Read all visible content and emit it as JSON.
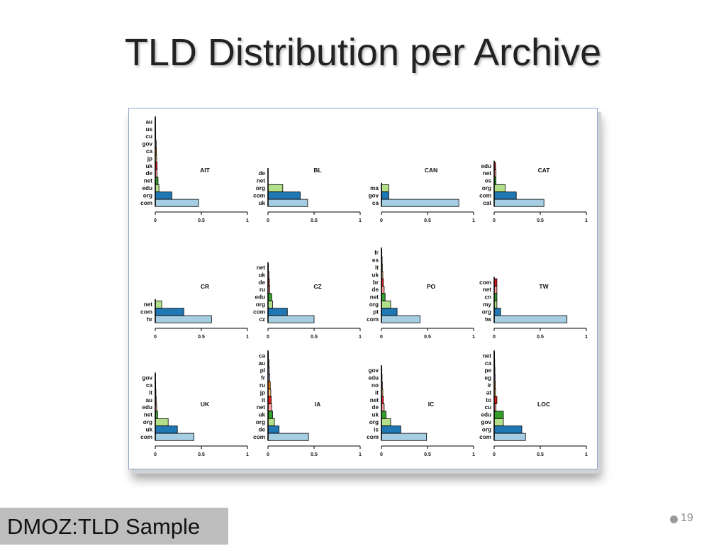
{
  "slide": {
    "title": "TLD Distribution per Archive",
    "footer_label": "DMOZ:TLD Sample",
    "page_number": "19"
  },
  "colors": {
    "com": "#a6cee3",
    "org": "#1f78b4",
    "edu": "#b2df8a",
    "net": "#33a02c",
    "de": "#fb9a99",
    "uk": "#e31a1c",
    "jp": "#fdbf6f",
    "ca": "#ff7f00",
    "gov": "#cab2d6",
    "bar_outline": "#000000"
  },
  "chart_data": [
    {
      "type": "bar",
      "orientation": "horizontal",
      "title": "AIT",
      "categories": [
        "com",
        "org",
        "edu",
        "net",
        "de",
        "uk",
        "jp",
        "ca",
        "gov",
        "cu",
        "us",
        "au"
      ],
      "values": [
        0.47,
        0.18,
        0.04,
        0.03,
        0.02,
        0.02,
        0.015,
        0.012,
        0.01,
        0.005,
        0.004,
        0.003
      ],
      "fills": [
        "com",
        "org",
        "edu",
        "net",
        "de",
        "uk",
        "jp",
        "ca",
        "gov",
        "com",
        "org",
        "edu"
      ],
      "xlim": [
        0,
        1
      ],
      "xticks": [
        "0",
        "0.5",
        "1"
      ]
    },
    {
      "type": "bar",
      "orientation": "horizontal",
      "title": "BL",
      "categories": [
        "uk",
        "com",
        "org",
        "net",
        "de"
      ],
      "values": [
        0.43,
        0.35,
        0.16,
        0.0,
        0.0
      ],
      "fills": [
        "com",
        "org",
        "edu",
        "net",
        "de"
      ],
      "xlim": [
        0,
        1
      ],
      "xticks": [
        "0",
        "0.5",
        "1"
      ]
    },
    {
      "type": "bar",
      "orientation": "horizontal",
      "title": "CAN",
      "categories": [
        "ca",
        "gov",
        "ma"
      ],
      "values": [
        0.84,
        0.08,
        0.08
      ],
      "fills": [
        "com",
        "org",
        "edu"
      ],
      "xlim": [
        0,
        1
      ],
      "xticks": [
        "0",
        "0.5",
        "1"
      ]
    },
    {
      "type": "bar",
      "orientation": "horizontal",
      "title": "CAT",
      "categories": [
        "cat",
        "com",
        "org",
        "es",
        "net",
        "edu"
      ],
      "values": [
        0.54,
        0.24,
        0.12,
        0.02,
        0.02,
        0.015
      ],
      "fills": [
        "com",
        "org",
        "edu",
        "net",
        "de",
        "uk"
      ],
      "xlim": [
        0,
        1
      ],
      "xticks": [
        "0",
        "0.5",
        "1"
      ]
    },
    {
      "type": "bar",
      "orientation": "horizontal",
      "title": "CR",
      "categories": [
        "hr",
        "com",
        "net"
      ],
      "values": [
        0.61,
        0.31,
        0.07
      ],
      "fills": [
        "com",
        "org",
        "edu"
      ],
      "xlim": [
        0,
        1
      ],
      "xticks": [
        "0",
        "0.5",
        "1"
      ]
    },
    {
      "type": "bar",
      "orientation": "horizontal",
      "title": "CZ",
      "categories": [
        "cz",
        "com",
        "org",
        "edu",
        "ru",
        "de",
        "uk",
        "net"
      ],
      "values": [
        0.5,
        0.21,
        0.05,
        0.04,
        0.02,
        0.015,
        0.01,
        0.005
      ],
      "fills": [
        "com",
        "org",
        "edu",
        "net",
        "de",
        "uk",
        "jp",
        "ca"
      ],
      "xlim": [
        0,
        1
      ],
      "xticks": [
        "0",
        "0.5",
        "1"
      ]
    },
    {
      "type": "bar",
      "orientation": "horizontal",
      "title": "PO",
      "categories": [
        "com",
        "pt",
        "org",
        "net",
        "de",
        "br",
        "uk",
        "it",
        "es",
        "fr"
      ],
      "values": [
        0.42,
        0.17,
        0.1,
        0.04,
        0.03,
        0.02,
        0.015,
        0.01,
        0.008,
        0.005
      ],
      "fills": [
        "com",
        "org",
        "edu",
        "net",
        "de",
        "uk",
        "jp",
        "ca",
        "gov",
        "com"
      ],
      "xlim": [
        0,
        1
      ],
      "xticks": [
        "0",
        "0.5",
        "1"
      ]
    },
    {
      "type": "bar",
      "orientation": "horizontal",
      "title": "TW",
      "categories": [
        "tw",
        "org",
        "my",
        "cn",
        "net",
        "com"
      ],
      "values": [
        0.79,
        0.07,
        0.03,
        0.03,
        0.03,
        0.03
      ],
      "fills": [
        "com",
        "org",
        "edu",
        "net",
        "de",
        "uk"
      ],
      "xlim": [
        0,
        1
      ],
      "xticks": [
        "0",
        "0.5",
        "1"
      ]
    },
    {
      "type": "bar",
      "orientation": "horizontal",
      "title": "UK",
      "categories": [
        "com",
        "uk",
        "org",
        "net",
        "edu",
        "au",
        "it",
        "ca",
        "gov"
      ],
      "values": [
        0.42,
        0.24,
        0.14,
        0.025,
        0.015,
        0.01,
        0.007,
        0.005,
        0.003
      ],
      "fills": [
        "com",
        "org",
        "edu",
        "net",
        "de",
        "uk",
        "jp",
        "ca",
        "gov"
      ],
      "xlim": [
        0,
        1
      ],
      "xticks": [
        "0",
        "0.5",
        "1"
      ]
    },
    {
      "type": "bar",
      "orientation": "horizontal",
      "title": "IA",
      "categories": [
        "com",
        "de",
        "org",
        "uk",
        "net",
        "it",
        "jp",
        "ru",
        "fr",
        "pl",
        "au",
        "ca"
      ],
      "values": [
        0.44,
        0.12,
        0.07,
        0.05,
        0.04,
        0.035,
        0.03,
        0.025,
        0.02,
        0.015,
        0.01,
        0.005
      ],
      "fills": [
        "com",
        "org",
        "edu",
        "net",
        "de",
        "uk",
        "jp",
        "ca",
        "gov",
        "com",
        "org",
        "edu"
      ],
      "xlim": [
        0,
        1
      ],
      "xticks": [
        "0",
        "0.5",
        "1"
      ]
    },
    {
      "type": "bar",
      "orientation": "horizontal",
      "title": "IC",
      "categories": [
        "com",
        "is",
        "org",
        "uk",
        "de",
        "net",
        "it",
        "no",
        "edu",
        "gov"
      ],
      "values": [
        0.49,
        0.21,
        0.1,
        0.05,
        0.03,
        0.02,
        0.015,
        0.01,
        0.007,
        0.005
      ],
      "fills": [
        "com",
        "org",
        "edu",
        "net",
        "de",
        "uk",
        "jp",
        "ca",
        "gov",
        "com"
      ],
      "xlim": [
        0,
        1
      ],
      "xticks": [
        "0",
        "0.5",
        "1"
      ]
    },
    {
      "type": "bar",
      "orientation": "horizontal",
      "title": "LOC",
      "categories": [
        "com",
        "org",
        "gov",
        "edu",
        "cu",
        "to",
        "at",
        "ir",
        "eg",
        "pe",
        "ca",
        "net"
      ],
      "values": [
        0.34,
        0.3,
        0.1,
        0.1,
        0.02,
        0.03,
        0.015,
        0.012,
        0.01,
        0.008,
        0.006,
        0.004
      ],
      "fills": [
        "com",
        "org",
        "edu",
        "net",
        "de",
        "uk",
        "jp",
        "ca",
        "gov",
        "com",
        "org",
        "edu"
      ],
      "xlim": [
        0,
        1
      ],
      "xticks": [
        "0",
        "0.5",
        "1"
      ]
    }
  ]
}
